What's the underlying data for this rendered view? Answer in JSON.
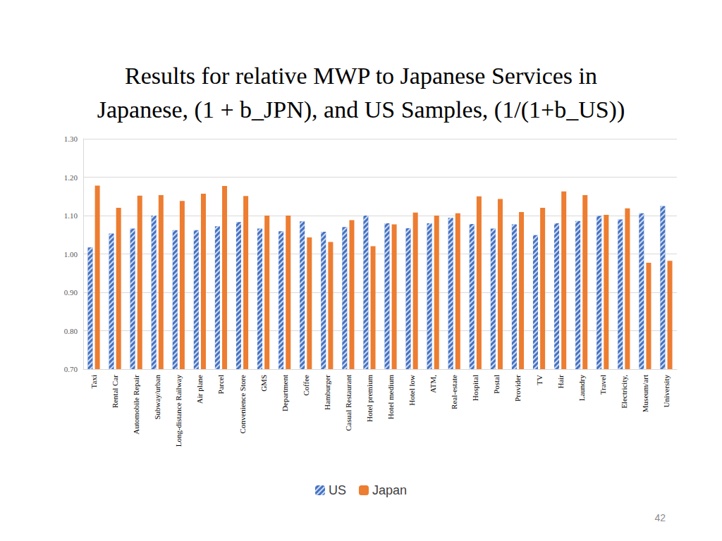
{
  "chart_data": {
    "type": "bar",
    "title": "Results for relative MWP to Japanese Services in\nJapanese, (1 + b_JPN), and US Samples, (1/(1+b_US))",
    "categories": [
      "Taxi",
      "Rental Car",
      "Automobile Repair",
      "Subway/urban",
      "Long-distance Railway",
      "Air plane",
      "Parcel",
      "Convenience Store",
      "GMS",
      "Department",
      "Coffee",
      "Hamburger",
      "Casual Restaurant",
      "Hotel premium",
      "Hotel medium",
      "Hotel low",
      "ATM,",
      "Real-estate",
      "Hospital",
      "Postal",
      "Provider",
      "TV",
      "Hair",
      "Laundry",
      "Travel",
      "Electricity,",
      "Museum/art",
      "University"
    ],
    "series": [
      {
        "name": "US",
        "color": "#4472c4",
        "values": [
          1.017,
          1.053,
          1.066,
          1.1,
          1.062,
          1.062,
          1.072,
          1.083,
          1.066,
          1.059,
          1.085,
          1.058,
          1.07,
          1.1,
          1.08,
          1.067,
          1.08,
          1.094,
          1.078,
          1.066,
          1.077,
          1.049,
          1.08,
          1.086,
          1.099,
          1.09,
          1.106,
          1.125
        ]
      },
      {
        "name": "Japan",
        "color": "#ed7d31",
        "values": [
          1.178,
          1.12,
          1.152,
          1.153,
          1.138,
          1.157,
          1.177,
          1.151,
          1.1,
          1.1,
          1.043,
          1.031,
          1.088,
          1.02,
          1.077,
          1.108,
          1.1,
          1.106,
          1.15,
          1.143,
          1.109,
          1.12,
          1.163,
          1.153,
          1.102,
          1.119,
          0.977,
          0.982
        ]
      }
    ],
    "ylim": [
      0.7,
      1.3
    ],
    "yticks": [
      {
        "value": 0.7,
        "label": "0.70"
      },
      {
        "value": 0.8,
        "label": "0.80"
      },
      {
        "value": 0.9,
        "label": "0.90"
      },
      {
        "value": 1.0,
        "label": "1.00"
      },
      {
        "value": 1.1,
        "label": "1.10"
      },
      {
        "value": 1.2,
        "label": "1.20"
      },
      {
        "value": 1.3,
        "label": "1.30"
      }
    ],
    "grid": true,
    "legend": "bottom",
    "annotations": [
      "42"
    ]
  }
}
